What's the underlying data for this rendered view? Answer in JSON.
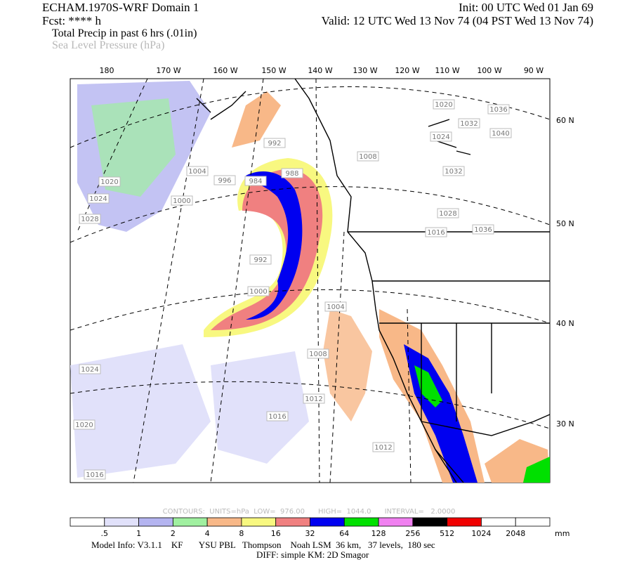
{
  "header": {
    "model": "ECHAM.1970S-WRF Domain 1",
    "init": "Init: 00 UTC Wed 01 Jan 69",
    "fcst": "Fcst: **** h",
    "valid": "Valid: 12 UTC Wed 13 Nov 74 (04 PST Wed 13 Nov 74)",
    "field1": "Total Precip in past 6 hrs (.01in)",
    "field2": "Sea Level Pressure (hPa)"
  },
  "map": {
    "lon_labels": [
      "180",
      "170 W",
      "160 W",
      "150 W",
      "140 W",
      "130 W",
      "120 W",
      "110 W",
      "100 W",
      "90 W"
    ],
    "lat_labels": [
      "60 N",
      "50 N",
      "40 N",
      "30 N"
    ],
    "contour_labels": [
      "984",
      "988",
      "992",
      "996",
      "1004",
      "1000",
      "1020",
      "1024",
      "1028",
      "1008",
      "992",
      "1000",
      "1004",
      "1008",
      "1012",
      "1016",
      "1012",
      "1024",
      "1020",
      "1016",
      "1020",
      "1032",
      "1036",
      "1040",
      "1032",
      "1028",
      "1016",
      "1036",
      "1024"
    ]
  },
  "colorbar": {
    "contours": "CONTOURS:  UNITS=hPa  LOW=  976.00      HIGH=  1044.0      INTERVAL=   2.0000",
    "labels": [
      ".5",
      "1",
      "2",
      "4",
      "8",
      "16",
      "32",
      "64",
      "128",
      "256",
      "512",
      "1024",
      "2048"
    ],
    "unit": "mm",
    "colors": [
      "#ffffff",
      "#e1e1fa",
      "#b4b4f0",
      "#a0f0a0",
      "#f8b888",
      "#f8f880",
      "#f08080",
      "#0000f0",
      "#00e000",
      "#f080f0",
      "#000000",
      "#f00000",
      "#ffffff",
      "#ffffff"
    ]
  },
  "footer": {
    "line1": "Model Info: V3.1.1    KF       YSU PBL   Thompson    Noah LSM  36 km,   37 levels,  180 sec",
    "line2": "DIFF: simple KM: 2D Smagor"
  }
}
